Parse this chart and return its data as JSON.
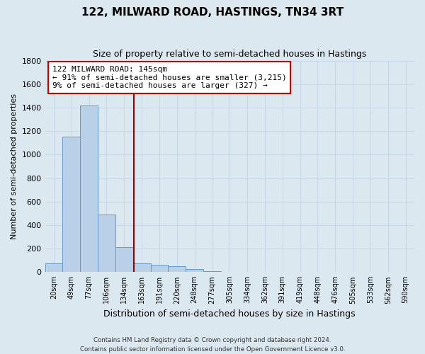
{
  "title": "122, MILWARD ROAD, HASTINGS, TN34 3RT",
  "subtitle": "Size of property relative to semi-detached houses in Hastings",
  "xlabel": "Distribution of semi-detached houses by size in Hastings",
  "ylabel": "Number of semi-detached properties",
  "bin_labels": [
    "20sqm",
    "49sqm",
    "77sqm",
    "106sqm",
    "134sqm",
    "163sqm",
    "191sqm",
    "220sqm",
    "248sqm",
    "277sqm",
    "305sqm",
    "334sqm",
    "362sqm",
    "391sqm",
    "419sqm",
    "448sqm",
    "476sqm",
    "505sqm",
    "533sqm",
    "562sqm",
    "590sqm"
  ],
  "bar_values": [
    75,
    1150,
    1420,
    490,
    215,
    75,
    60,
    50,
    25,
    10,
    0,
    0,
    0,
    0,
    0,
    0,
    0,
    0,
    0,
    0,
    0
  ],
  "bar_color": "#b8d0e8",
  "bar_edge_color": "#6699cc",
  "bar_width": 1.0,
  "vline_x": 4.55,
  "vline_color": "#990000",
  "ylim": [
    0,
    1800
  ],
  "yticks": [
    0,
    200,
    400,
    600,
    800,
    1000,
    1200,
    1400,
    1600,
    1800
  ],
  "annotation_line1": "122 MILWARD ROAD: 145sqm",
  "annotation_line2": "← 91% of semi-detached houses are smaller (3,215)",
  "annotation_line3": "9% of semi-detached houses are larger (327) →",
  "annotation_box_color": "#ffffff",
  "annotation_box_edge_color": "#cc0000",
  "grid_color": "#c8d8e8",
  "background_color": "#dce8f0",
  "footer_text": "Contains HM Land Registry data © Crown copyright and database right 2024.\nContains public sector information licensed under the Open Government Licence v3.0.",
  "figsize": [
    6.0,
    5.0
  ],
  "dpi": 100
}
